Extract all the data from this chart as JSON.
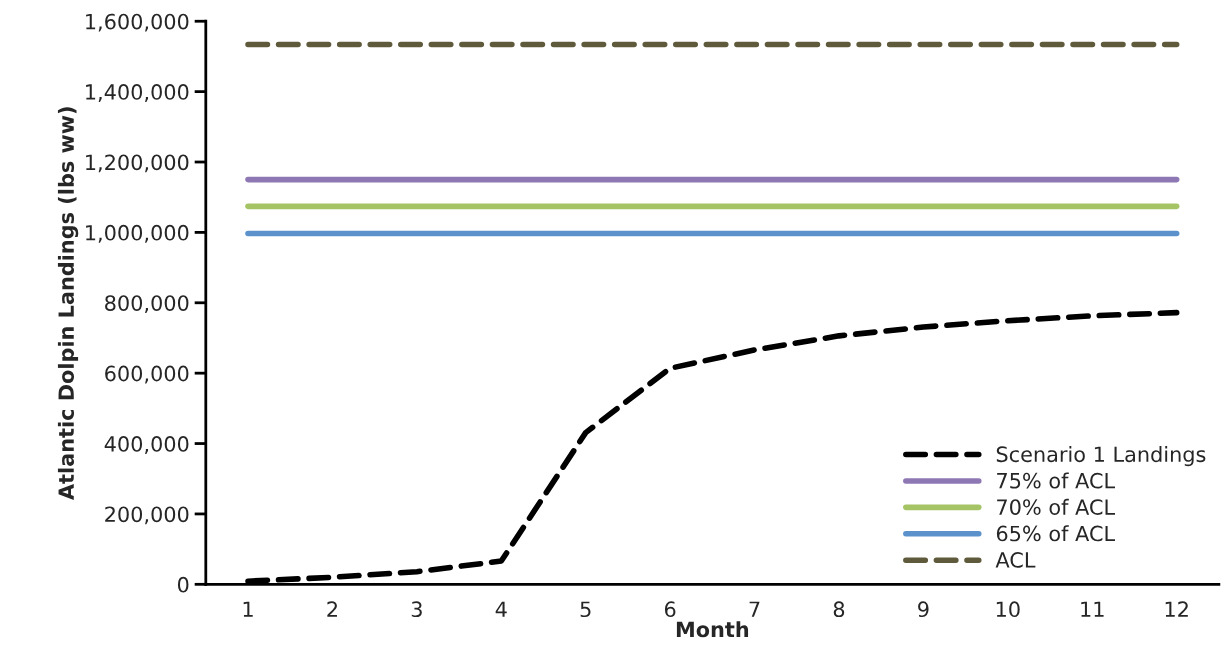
{
  "chart_data": {
    "type": "line",
    "xlabel": "Month",
    "ylabel": "Atlantic Dolpin Landings (lbs ww)",
    "categories": [
      "1",
      "2",
      "3",
      "4",
      "5",
      "6",
      "7",
      "8",
      "9",
      "10",
      "11",
      "12"
    ],
    "series": [
      {
        "name": "Scenario 1 Landings",
        "color": "#000000",
        "line_style": "dashed",
        "values": [
          9000,
          20000,
          36000,
          66000,
          431000,
          614000,
          666000,
          706000,
          731000,
          749000,
          763000,
          772000
        ]
      },
      {
        "name": "75% of ACL",
        "color": "#8e78b4",
        "line_style": "solid",
        "values": [
          1150000,
          1150000,
          1150000,
          1150000,
          1150000,
          1150000,
          1150000,
          1150000,
          1150000,
          1150000,
          1150000,
          1150000
        ]
      },
      {
        "name": "70% of ACL",
        "color": "#a4c466",
        "line_style": "solid",
        "values": [
          1074000,
          1074000,
          1074000,
          1074000,
          1074000,
          1074000,
          1074000,
          1074000,
          1074000,
          1074000,
          1074000,
          1074000
        ]
      },
      {
        "name": "65% of ACL",
        "color": "#5b92cc",
        "line_style": "solid",
        "values": [
          997000,
          997000,
          997000,
          997000,
          997000,
          997000,
          997000,
          997000,
          997000,
          997000,
          997000,
          997000
        ]
      },
      {
        "name": "ACL",
        "color": "#5f5a3c",
        "line_style": "dashed",
        "values": [
          1534000,
          1534000,
          1534000,
          1534000,
          1534000,
          1534000,
          1534000,
          1534000,
          1534000,
          1534000,
          1534000,
          1534000
        ]
      }
    ],
    "ylim": [
      0,
      1600000
    ],
    "yticks": [
      {
        "value": 0,
        "label": "0"
      },
      {
        "value": 200000,
        "label": "200,000"
      },
      {
        "value": 400000,
        "label": "400,000"
      },
      {
        "value": 600000,
        "label": "600,000"
      },
      {
        "value": 800000,
        "label": "800,000"
      },
      {
        "value": 1000000,
        "label": "1,000,000"
      },
      {
        "value": 1200000,
        "label": "1,200,000"
      },
      {
        "value": 1400000,
        "label": "1,400,000"
      },
      {
        "value": 1600000,
        "label": "1,600,000"
      }
    ],
    "grid": false,
    "legend": "bottom right",
    "marker": "none"
  }
}
